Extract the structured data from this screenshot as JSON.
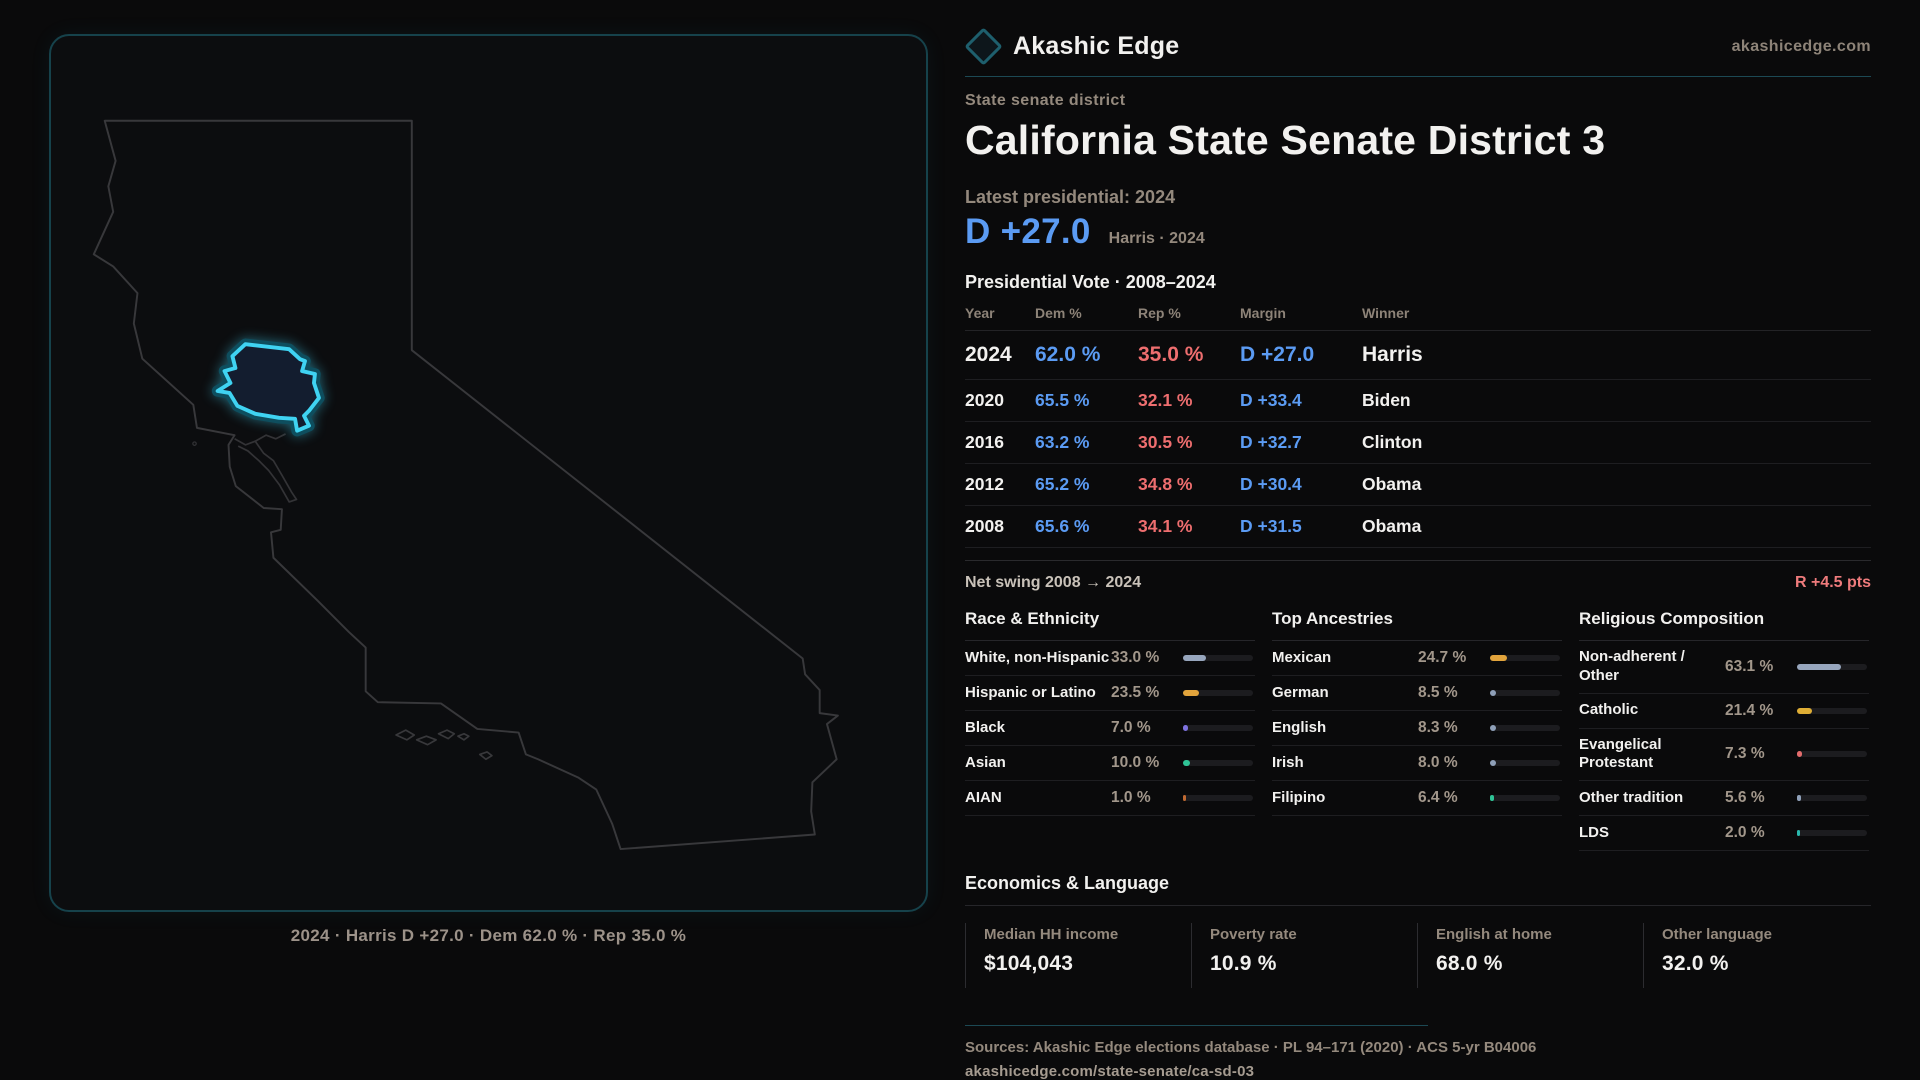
{
  "brand": {
    "name": "Akashic Edge",
    "url": "akashicedge.com"
  },
  "header": {
    "kicker": "State senate district",
    "title": "California State Senate District 3"
  },
  "latest": {
    "label": "Latest presidential: 2024",
    "margin": "D +27.0",
    "note": "Harris · 2024"
  },
  "table": {
    "title": "Presidential Vote · 2008–2024",
    "columns": {
      "year": "Year",
      "dem": "Dem %",
      "rep": "Rep %",
      "margin": "Margin",
      "winner": "Winner"
    },
    "rows": [
      {
        "year": "2024",
        "dem": "62.0 %",
        "rep": "35.0 %",
        "margin": "D +27.0",
        "winner": "Harris"
      },
      {
        "year": "2020",
        "dem": "65.5 %",
        "rep": "32.1 %",
        "margin": "D +33.4",
        "winner": "Biden"
      },
      {
        "year": "2016",
        "dem": "63.2 %",
        "rep": "30.5 %",
        "margin": "D +32.7",
        "winner": "Clinton"
      },
      {
        "year": "2012",
        "dem": "65.2 %",
        "rep": "34.8 %",
        "margin": "D +30.4",
        "winner": "Obama"
      },
      {
        "year": "2008",
        "dem": "65.6 %",
        "rep": "34.1 %",
        "margin": "D +31.5",
        "winner": "Obama"
      }
    ]
  },
  "swing": {
    "label": "Net swing 2008 → 2024",
    "value": "R +4.5 pts"
  },
  "demographics": [
    {
      "title": "Race & Ethnicity",
      "rows": [
        {
          "label": "White, non-Hispanic",
          "value": "33.0 %",
          "pct": 33.0,
          "color": "#97a6bd"
        },
        {
          "label": "Hispanic or Latino",
          "value": "23.5 %",
          "pct": 23.5,
          "color": "#e2a43c"
        },
        {
          "label": "Black",
          "value": "7.0 %",
          "pct": 7.0,
          "color": "#7e72df"
        },
        {
          "label": "Asian",
          "value": "10.0 %",
          "pct": 10.0,
          "color": "#2fc496"
        },
        {
          "label": "AIAN",
          "value": "1.0 %",
          "pct": 1.0,
          "color": "#c06a32"
        }
      ]
    },
    {
      "title": "Top Ancestries",
      "rows": [
        {
          "label": "Mexican",
          "value": "24.7 %",
          "pct": 24.7,
          "color": "#e2a43c"
        },
        {
          "label": "German",
          "value": "8.5 %",
          "pct": 8.5,
          "color": "#8fa0b8"
        },
        {
          "label": "English",
          "value": "8.3 %",
          "pct": 8.3,
          "color": "#8fa0b8"
        },
        {
          "label": "Irish",
          "value": "8.0 %",
          "pct": 8.0,
          "color": "#8fa0b8"
        },
        {
          "label": "Filipino",
          "value": "6.4 %",
          "pct": 6.4,
          "color": "#2fc496"
        }
      ]
    },
    {
      "title": "Religious Composition",
      "rows": [
        {
          "label": "Non-adherent / Other",
          "value": "63.1 %",
          "pct": 63.1,
          "color": "#97a6bd"
        },
        {
          "label": "Catholic",
          "value": "21.4 %",
          "pct": 21.4,
          "color": "#dfae35"
        },
        {
          "label": "Evangelical Protestant",
          "value": "7.3 %",
          "pct": 7.3,
          "color": "#e36c6c"
        },
        {
          "label": "Other tradition",
          "value": "5.6 %",
          "pct": 5.6,
          "color": "#8fa0b8"
        },
        {
          "label": "LDS",
          "value": "2.0 %",
          "pct": 2.0,
          "color": "#2ab8ad"
        }
      ]
    }
  ],
  "economics": {
    "title": "Economics & Language",
    "stats": [
      {
        "label": "Median HH income",
        "value": "$104,043"
      },
      {
        "label": "Poverty rate",
        "value": "10.9 %"
      },
      {
        "label": "English at home",
        "value": "68.0 %"
      },
      {
        "label": "Other language",
        "value": "32.0 %"
      }
    ]
  },
  "footer": {
    "sources": "Sources: Akashic Edge elections database · PL 94–171 (2020) · ACS 5-yr B04006",
    "permalink": "akashicedge.com/state-senate/ca-sd-03"
  },
  "map": {
    "caption": "2024 · Harris D +27.0 · Dem 62.0 % · Rep 35.0 %"
  },
  "chart_data": {
    "type": "bar",
    "groups": [
      {
        "title": "Race & Ethnicity",
        "categories": [
          "White, non-Hispanic",
          "Hispanic or Latino",
          "Black",
          "Asian",
          "AIAN"
        ],
        "values": [
          33.0,
          23.5,
          7.0,
          10.0,
          1.0
        ]
      },
      {
        "title": "Top Ancestries",
        "categories": [
          "Mexican",
          "German",
          "English",
          "Irish",
          "Filipino"
        ],
        "values": [
          24.7,
          8.5,
          8.3,
          8.0,
          6.4
        ]
      },
      {
        "title": "Religious Composition",
        "categories": [
          "Non-adherent / Other",
          "Catholic",
          "Evangelical Protestant",
          "Other tradition",
          "LDS"
        ],
        "values": [
          63.1,
          21.4,
          7.3,
          5.6,
          2.0
        ]
      }
    ],
    "xlim": [
      0,
      100
    ]
  }
}
